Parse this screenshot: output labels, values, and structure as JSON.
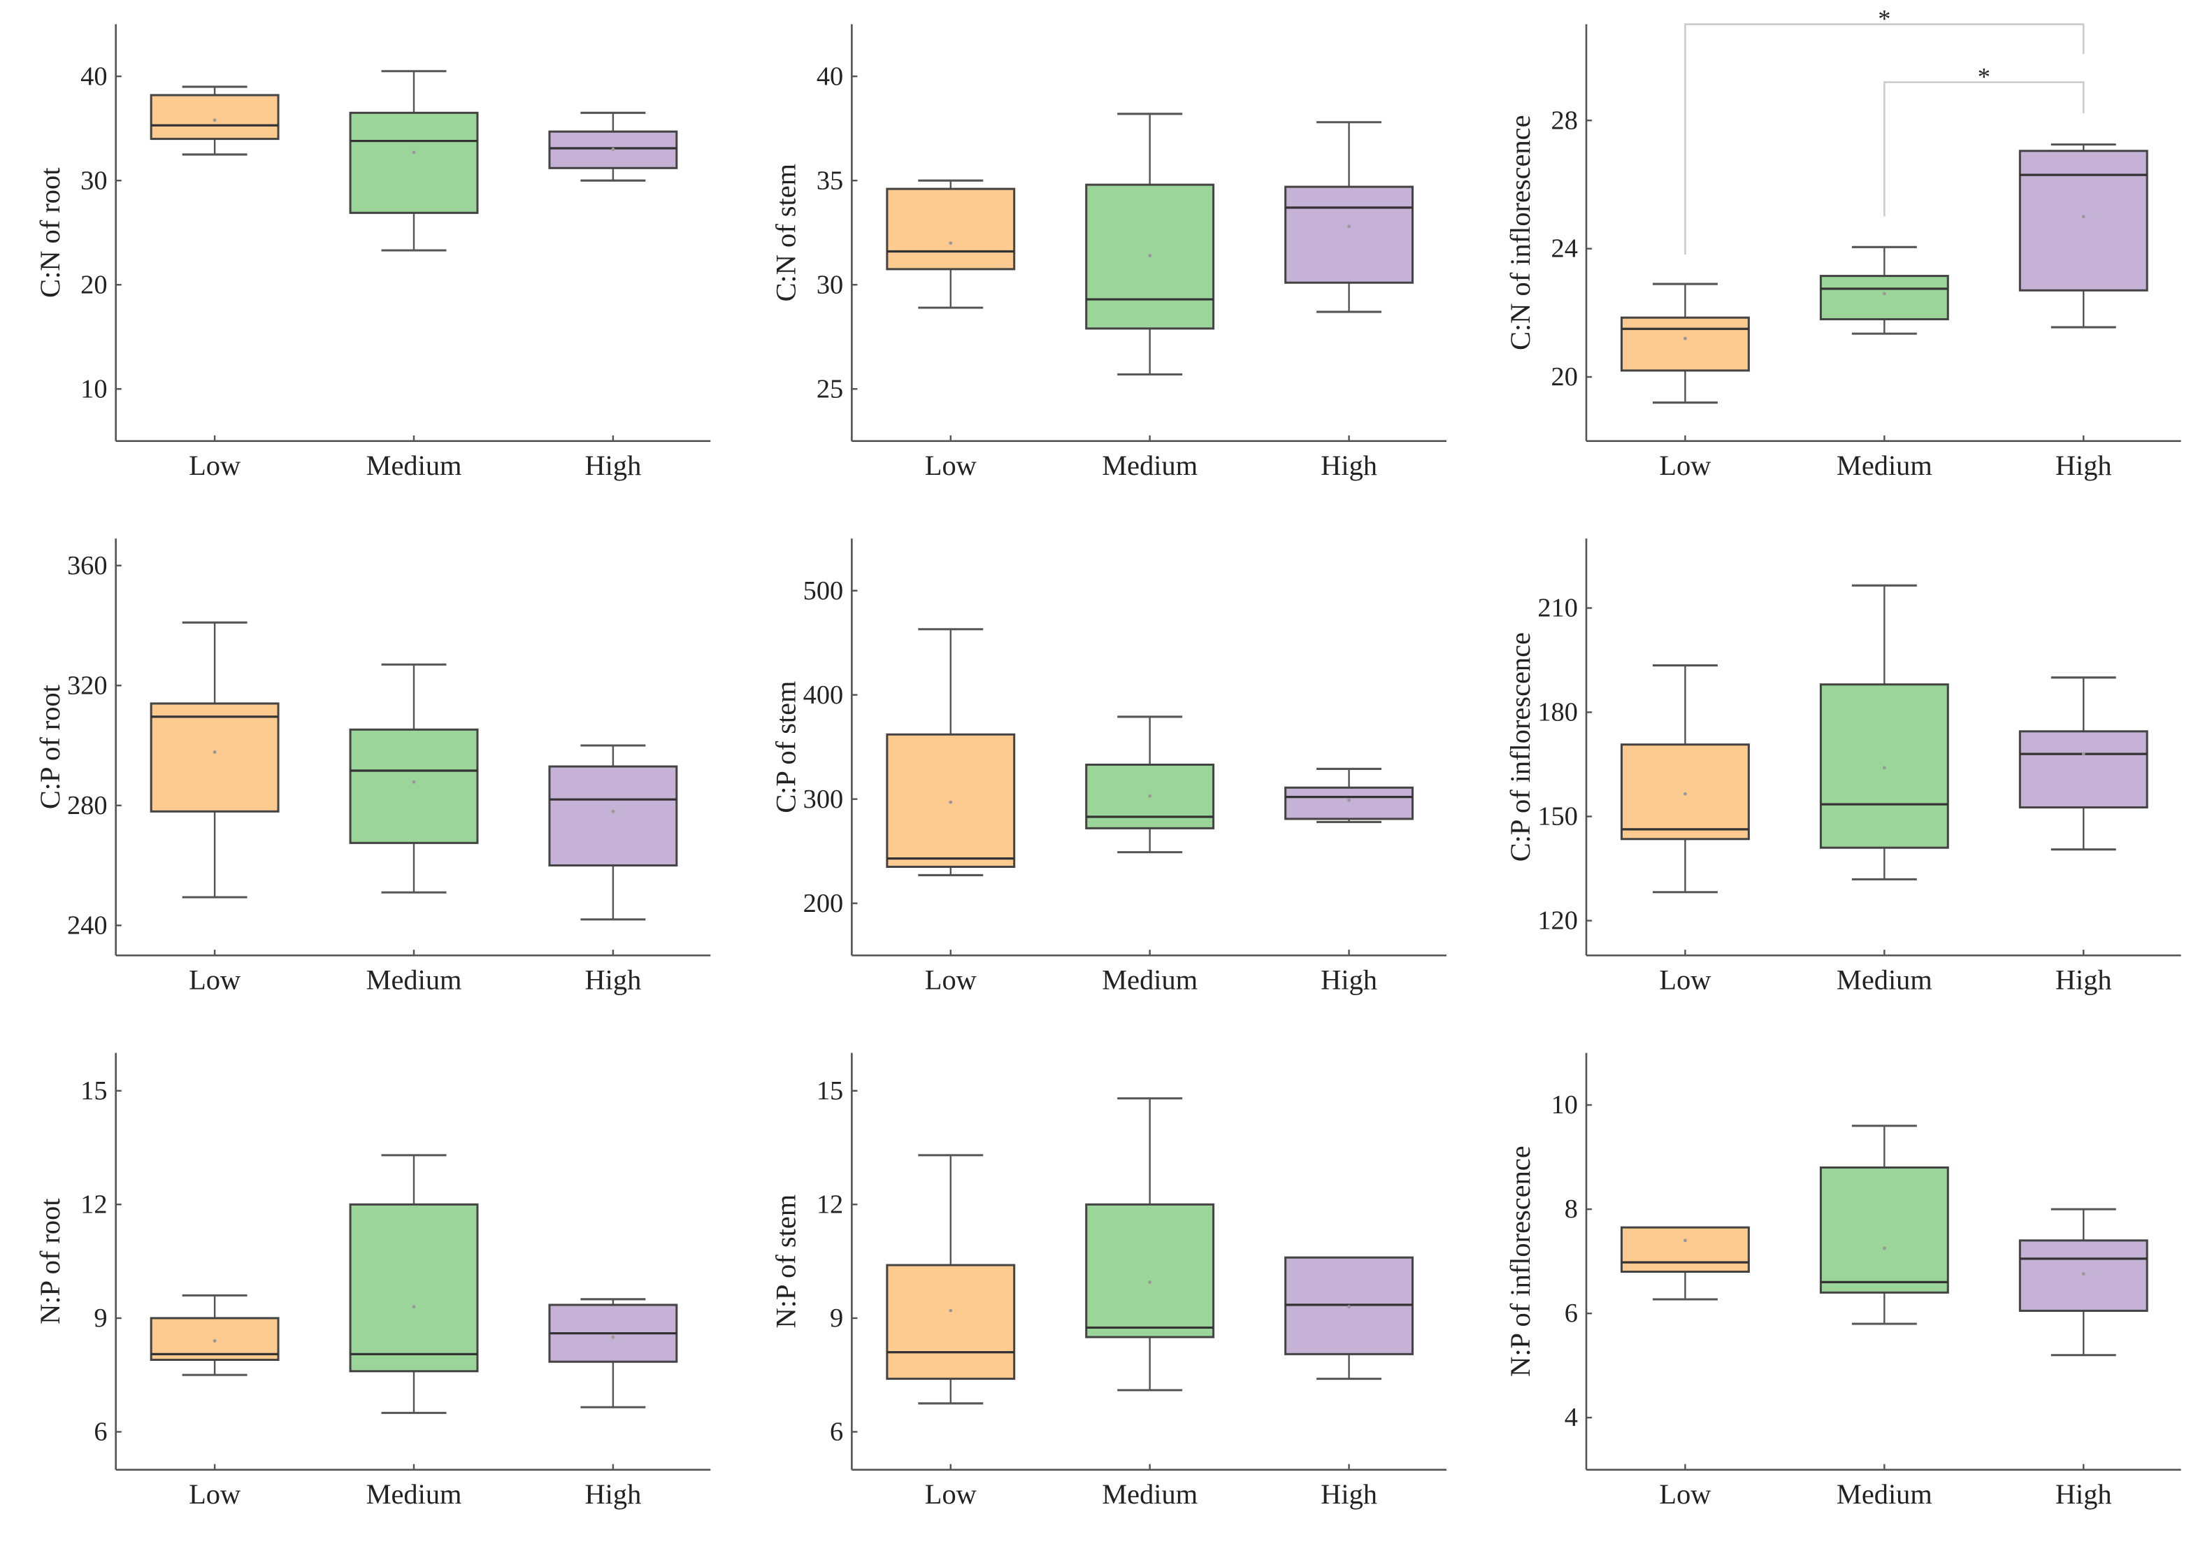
{
  "chart_data": [
    {
      "type": "box",
      "ylabel": "C:N of root",
      "categories": [
        "Low",
        "Medium",
        "High"
      ],
      "ylim": [
        5,
        45
      ],
      "yticks": [
        10,
        20,
        30,
        40
      ],
      "boxes": [
        {
          "min": 32.5,
          "q1": 34.0,
          "median": 35.3,
          "q3": 38.2,
          "max": 39.0,
          "mean": 35.8
        },
        {
          "min": 23.3,
          "q1": 26.9,
          "median": 33.8,
          "q3": 36.5,
          "max": 40.5,
          "mean": 32.7
        },
        {
          "min": 30.0,
          "q1": 31.2,
          "median": 33.1,
          "q3": 34.7,
          "max": 36.5,
          "mean": 33.0
        }
      ]
    },
    {
      "type": "box",
      "ylabel": "C:N of stem",
      "categories": [
        "Low",
        "Medium",
        "High"
      ],
      "ylim": [
        22.5,
        42.5
      ],
      "yticks": [
        25,
        30,
        35,
        40
      ],
      "boxes": [
        {
          "min": 28.9,
          "q1": 30.75,
          "median": 31.6,
          "q3": 34.6,
          "max": 35.0,
          "mean": 32.0
        },
        {
          "min": 25.7,
          "q1": 27.9,
          "median": 29.3,
          "q3": 34.8,
          "max": 38.2,
          "mean": 31.4
        },
        {
          "min": 28.7,
          "q1": 30.1,
          "median": 33.7,
          "q3": 34.7,
          "max": 37.8,
          "mean": 32.8
        }
      ]
    },
    {
      "type": "box",
      "ylabel": "C:N of inflorescence",
      "categories": [
        "Low",
        "Medium",
        "High"
      ],
      "ylim": [
        18,
        31
      ],
      "yticks": [
        20,
        24,
        28
      ],
      "boxes": [
        {
          "min": 19.2,
          "q1": 20.2,
          "median": 21.5,
          "q3": 21.85,
          "max": 22.9,
          "mean": 21.2
        },
        {
          "min": 21.35,
          "q1": 21.8,
          "median": 22.75,
          "q3": 23.15,
          "max": 24.05,
          "mean": 22.6
        },
        {
          "min": 21.55,
          "q1": 22.7,
          "median": 26.3,
          "q3": 27.05,
          "max": 27.25,
          "mean": 25.0
        }
      ],
      "significance": [
        {
          "from": "Low",
          "to": "High",
          "label": "*"
        },
        {
          "from": "Medium",
          "to": "High",
          "label": "*"
        }
      ]
    },
    {
      "type": "box",
      "ylabel": "C:P of root",
      "categories": [
        "Low",
        "Medium",
        "High"
      ],
      "ylim": [
        230,
        369
      ],
      "yticks": [
        240,
        280,
        320,
        360
      ],
      "boxes": [
        {
          "min": 249.4,
          "q1": 278,
          "median": 309.6,
          "q3": 314,
          "max": 341,
          "mean": 297.8
        },
        {
          "min": 251,
          "q1": 267.5,
          "median": 291.6,
          "q3": 305.3,
          "max": 327,
          "mean": 287.8
        },
        {
          "min": 242,
          "q1": 260,
          "median": 282,
          "q3": 293,
          "max": 300,
          "mean": 278
        }
      ]
    },
    {
      "type": "box",
      "ylabel": "C:P of stem",
      "categories": [
        "Low",
        "Medium",
        "High"
      ],
      "ylim": [
        150,
        550
      ],
      "yticks": [
        200,
        300,
        400,
        500
      ],
      "boxes": [
        {
          "min": 227,
          "q1": 235,
          "median": 243,
          "q3": 362,
          "max": 463,
          "mean": 297
        },
        {
          "min": 249,
          "q1": 272,
          "median": 283,
          "q3": 333,
          "max": 379,
          "mean": 303
        },
        {
          "min": 278,
          "q1": 281,
          "median": 302,
          "q3": 311,
          "max": 329,
          "mean": 299
        }
      ]
    },
    {
      "type": "box",
      "ylabel": "C:P of inflorescence",
      "categories": [
        "Low",
        "Medium",
        "High"
      ],
      "ylim": [
        110,
        230
      ],
      "yticks": [
        120,
        150,
        180,
        210
      ],
      "boxes": [
        {
          "min": 128.2,
          "q1": 143.5,
          "median": 146.3,
          "q3": 170.7,
          "max": 193.5,
          "mean": 156.5
        },
        {
          "min": 131.9,
          "q1": 141,
          "median": 153.5,
          "q3": 188,
          "max": 216.5,
          "mean": 164
        },
        {
          "min": 140.5,
          "q1": 152.6,
          "median": 168,
          "q3": 174.5,
          "max": 190,
          "mean": 168
        }
      ]
    },
    {
      "type": "box",
      "ylabel": "N:P of root",
      "categories": [
        "Low",
        "Medium",
        "High"
      ],
      "ylim": [
        5,
        16
      ],
      "yticks": [
        6,
        9,
        12,
        15
      ],
      "boxes": [
        {
          "min": 7.5,
          "q1": 7.9,
          "median": 8.05,
          "q3": 9.0,
          "max": 9.6,
          "mean": 8.4
        },
        {
          "min": 6.5,
          "q1": 7.6,
          "median": 8.05,
          "q3": 12.0,
          "max": 13.3,
          "mean": 9.3
        },
        {
          "min": 6.65,
          "q1": 7.85,
          "median": 8.6,
          "q3": 9.35,
          "max": 9.5,
          "mean": 8.5
        }
      ]
    },
    {
      "type": "box",
      "ylabel": "N:P of stem",
      "categories": [
        "Low",
        "Medium",
        "High"
      ],
      "ylim": [
        5,
        16
      ],
      "yticks": [
        6,
        9,
        12,
        15
      ],
      "boxes": [
        {
          "min": 6.75,
          "q1": 7.4,
          "median": 8.1,
          "q3": 10.4,
          "max": 13.3,
          "mean": 9.2
        },
        {
          "min": 7.1,
          "q1": 8.5,
          "median": 8.75,
          "q3": 12.0,
          "max": 14.8,
          "mean": 9.95
        },
        {
          "min": 7.4,
          "q1": 8.05,
          "median": 9.35,
          "q3": 10.6,
          "max": 10.6,
          "mean": 9.3
        }
      ]
    },
    {
      "type": "box",
      "ylabel": "N:P of inflorescence",
      "categories": [
        "Low",
        "Medium",
        "High"
      ],
      "ylim": [
        3,
        11
      ],
      "yticks": [
        4,
        6,
        8,
        10
      ],
      "boxes": [
        {
          "min": 6.27,
          "q1": 6.8,
          "median": 6.98,
          "q3": 7.65,
          "max": 7.65,
          "mean": 7.4
        },
        {
          "min": 5.8,
          "q1": 6.4,
          "median": 6.6,
          "q3": 8.8,
          "max": 9.6,
          "mean": 7.25
        },
        {
          "min": 5.2,
          "q1": 6.05,
          "median": 7.05,
          "q3": 7.4,
          "max": 8.0,
          "mean": 6.76
        }
      ]
    }
  ],
  "colors": {
    "Low": "#fdca8f",
    "Medium": "#9bd59a",
    "High": "#c5b2d6",
    "edge": "#444444",
    "axis": "#555555",
    "bracket": "#cccccc"
  }
}
